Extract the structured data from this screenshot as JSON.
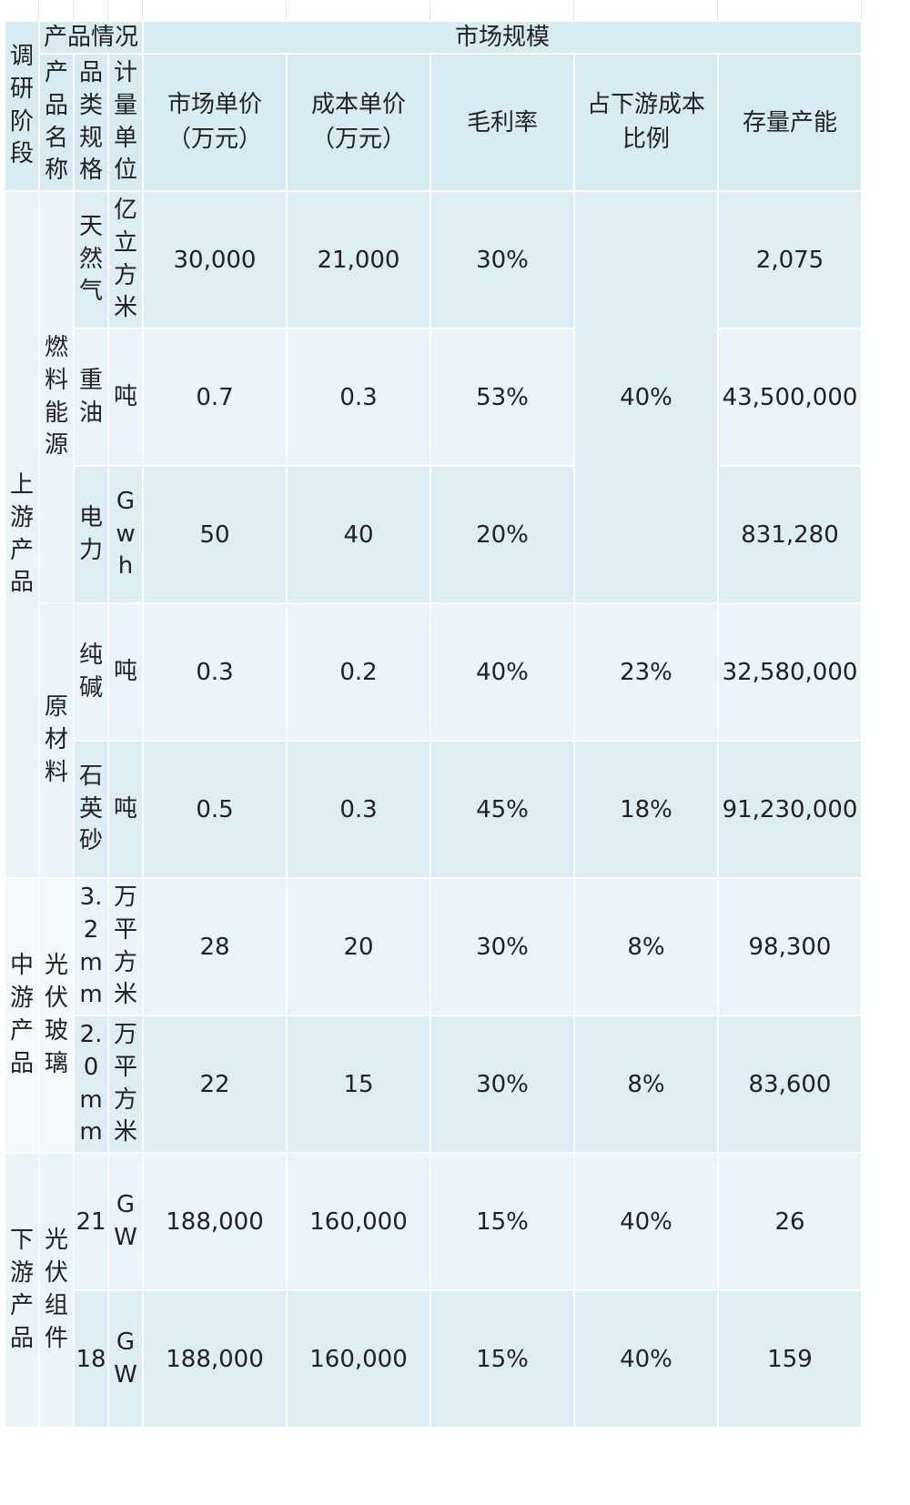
{
  "headers": {
    "stage": "调研阶段",
    "product_group": "产品情况",
    "market_group": "市场规模",
    "name": "产品名称",
    "spec": "品类规格",
    "unit": "计量单位",
    "market_price_l1": "市场单价",
    "market_price_l2": "（万元）",
    "cost_price_l1": "成本单价",
    "cost_price_l2": "（万元）",
    "gross_margin": "毛利率",
    "downstream_ratio_l1": "占下游成本",
    "downstream_ratio_l2": "比例",
    "capacity": "存量产能"
  },
  "stages": {
    "upstream": "上游产品",
    "midstream": "中游产品",
    "downstream": "下游产品"
  },
  "groups": {
    "fuel": "燃料能源",
    "raw": "原材料",
    "pv_glass": "光伏玻璃",
    "pv_module": "光伏组件"
  },
  "rows": [
    {
      "spec": "天然气",
      "unit": "亿立方米",
      "market_price": "30,000",
      "cost_price": "21,000",
      "margin": "30%",
      "capacity": "2,075"
    },
    {
      "spec": "重油",
      "unit": "吨",
      "market_price": "0.7",
      "cost_price": "0.3",
      "margin": "53%",
      "capacity": "43,500,000"
    },
    {
      "spec": "电力",
      "unit": "Gwh",
      "market_price": "50",
      "cost_price": "40",
      "margin": "20%",
      "capacity": "831,280"
    },
    {
      "spec": "纯碱",
      "unit": "吨",
      "market_price": "0.3",
      "cost_price": "0.2",
      "margin": "40%",
      "ratio": "23%",
      "capacity": "32,580,000"
    },
    {
      "spec": "石英砂",
      "unit": "吨",
      "market_price": "0.5",
      "cost_price": "0.3",
      "margin": "45%",
      "ratio": "18%",
      "capacity": "91,230,000"
    },
    {
      "spec": "3.2mm",
      "unit": "万平方米",
      "market_price": "28",
      "cost_price": "20",
      "margin": "30%",
      "ratio": "8%",
      "capacity": "98,300"
    },
    {
      "spec": "2.0mm",
      "unit": "万平方米",
      "market_price": "22",
      "cost_price": "15",
      "margin": "30%",
      "ratio": "8%",
      "capacity": "83,600"
    },
    {
      "spec": "21",
      "unit": "GW",
      "market_price": "188,000",
      "cost_price": "160,000",
      "margin": "15%",
      "ratio": "40%",
      "capacity": "26"
    },
    {
      "spec": "18",
      "unit": "GW",
      "market_price": "188,000",
      "cost_price": "160,000",
      "margin": "15%",
      "ratio": "40%",
      "capacity": "159"
    }
  ],
  "fuel_ratio": "40%",
  "colors": {
    "header": "#d7ecf2",
    "shade": "#dcedf3",
    "light": "#eaf5f9"
  }
}
